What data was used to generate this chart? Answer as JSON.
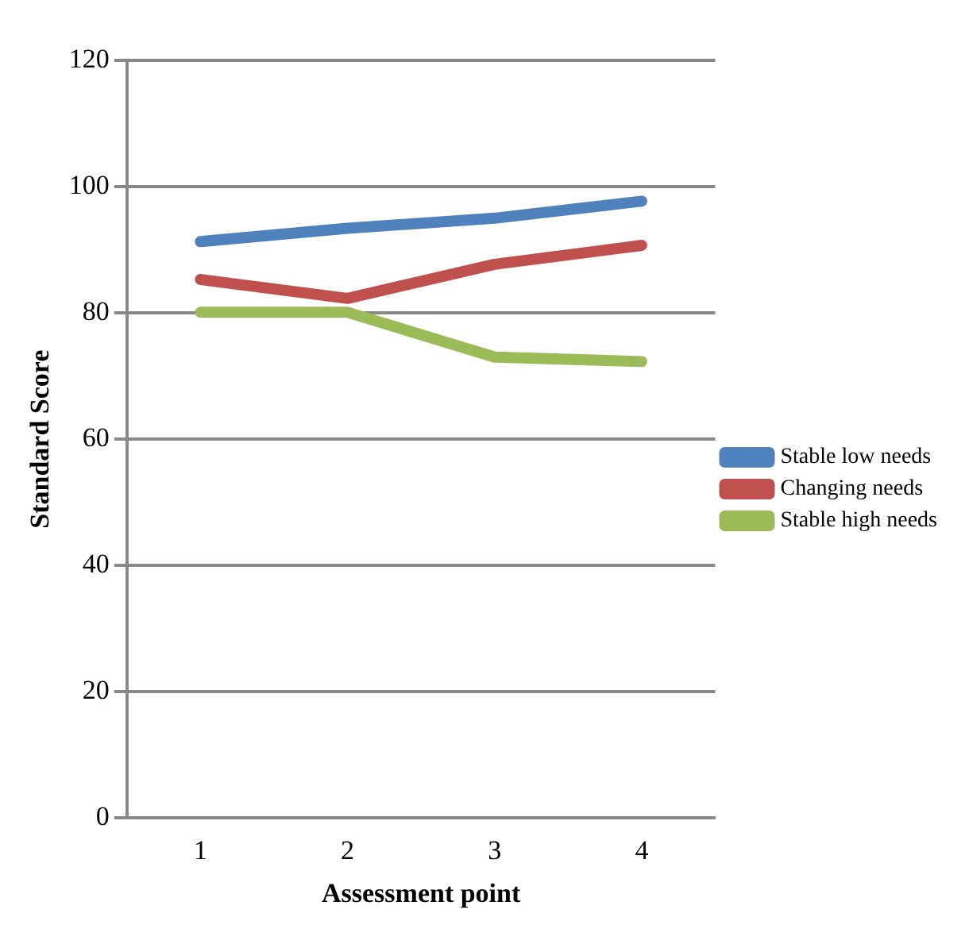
{
  "chart_data": {
    "type": "line",
    "xlabel": "Assessment point",
    "ylabel": "Standard Score",
    "categories": [
      "1",
      "2",
      "3",
      "4"
    ],
    "series": [
      {
        "name": "Stable low needs",
        "color": "#4f81bd",
        "values": [
          91.3,
          93.4,
          95,
          97.7
        ]
      },
      {
        "name": "Changing needs",
        "color": "#c0504d",
        "values": [
          85.3,
          82.3,
          87.7,
          90.7
        ]
      },
      {
        "name": "Stable high needs",
        "color": "#9bbb59",
        "values": [
          80.1,
          80.1,
          73,
          72.3
        ]
      }
    ],
    "ylim": [
      0,
      120
    ],
    "yticks": [
      0,
      20,
      40,
      60,
      80,
      100,
      120
    ],
    "grid": "y",
    "legend": "right",
    "marker": "none",
    "line_style": "solid"
  }
}
